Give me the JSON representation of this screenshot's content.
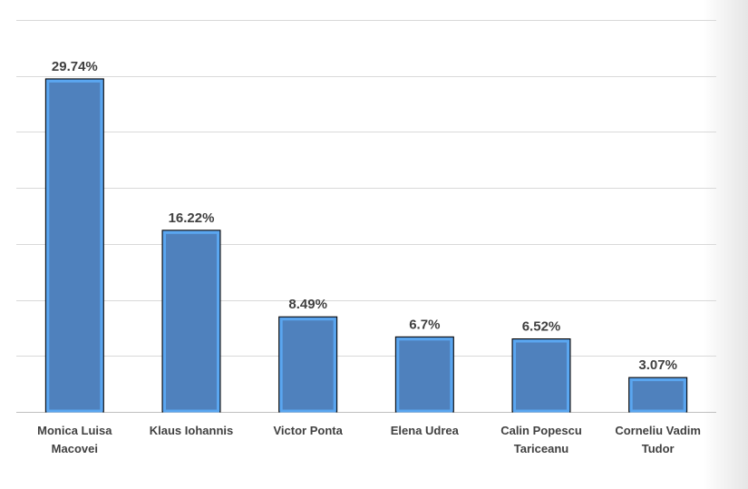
{
  "chart_data": {
    "type": "bar",
    "categories": [
      [
        "Monica Luisa",
        "Macovei"
      ],
      [
        "Klaus Iohannis"
      ],
      [
        "Victor Ponta"
      ],
      [
        "Elena Udrea"
      ],
      [
        "Calin Popescu",
        "Tariceanu"
      ],
      [
        "Corneliu Vadim",
        "Tudor"
      ]
    ],
    "values": [
      29.74,
      16.22,
      8.49,
      6.7,
      6.52,
      3.07
    ],
    "data_labels": [
      "29.74%",
      "16.22%",
      "8.49%",
      "6.7%",
      "6.52%",
      "3.07%"
    ],
    "title": "",
    "xlabel": "",
    "ylabel": "",
    "ylim": [
      0,
      35
    ],
    "gridlines": 7,
    "grid": true,
    "legend": "none",
    "colors": {
      "bar_fill": "#4f81bd",
      "bar_highlight": "#5aa6f0",
      "bar_outline": "#000000",
      "grid": "#d9d9d9",
      "label": "#404040"
    }
  }
}
